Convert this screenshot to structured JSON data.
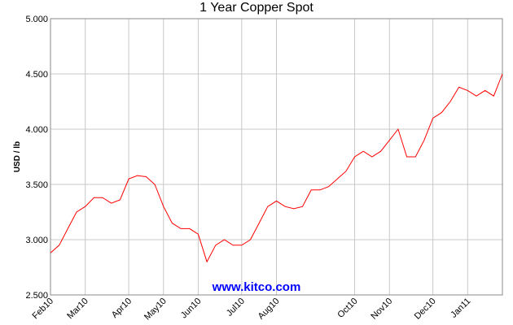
{
  "chart_data": {
    "type": "line",
    "title": "1 Year Copper Spot",
    "ylabel": "USD / lb",
    "watermark": "www.kitco.com",
    "categories": [
      "Feb10",
      null,
      null,
      null,
      "Mar10",
      null,
      null,
      null,
      null,
      "Apr10",
      null,
      null,
      null,
      "May10",
      null,
      null,
      null,
      "Jun10",
      null,
      null,
      null,
      null,
      "Jul10",
      null,
      null,
      null,
      "Aug10",
      null,
      null,
      null,
      null,
      null,
      null,
      null,
      null,
      "Oct10",
      null,
      null,
      null,
      "Nov10",
      null,
      null,
      null,
      null,
      "Dec10",
      null,
      null,
      null,
      "Jan11",
      null,
      null,
      null,
      null
    ],
    "series": [
      {
        "name": "Copper",
        "color": "#ff0000",
        "values": [
          2.88,
          2.95,
          3.1,
          3.25,
          3.3,
          3.38,
          3.38,
          3.33,
          3.36,
          3.55,
          3.58,
          3.57,
          3.5,
          3.3,
          3.15,
          3.1,
          3.1,
          3.05,
          2.8,
          2.95,
          3.0,
          2.95,
          2.95,
          3.0,
          3.15,
          3.3,
          3.35,
          3.3,
          3.28,
          3.3,
          3.45,
          3.45,
          3.48,
          3.55,
          3.62,
          3.75,
          3.8,
          3.75,
          3.8,
          3.9,
          4.0,
          3.75,
          3.75,
          3.9,
          4.1,
          4.15,
          4.25,
          4.38,
          4.35,
          4.3,
          4.35,
          4.3,
          4.5
        ]
      }
    ],
    "ylim": [
      2.5,
      5
    ],
    "yticks": [
      {
        "value": 2.5,
        "label": "2.500"
      },
      {
        "value": 3,
        "label": "3.000"
      },
      {
        "value": 3.5,
        "label": "3.500"
      },
      {
        "value": 4,
        "label": "4.000"
      },
      {
        "value": 4.5,
        "label": "4.500"
      },
      {
        "value": 5,
        "label": "5.000"
      }
    ],
    "grid": true
  }
}
